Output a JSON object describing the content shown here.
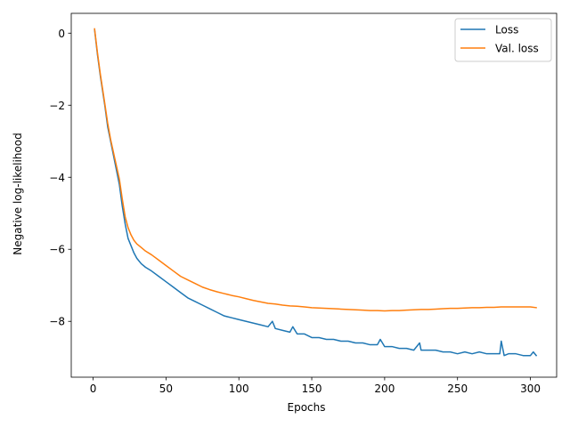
{
  "chart_data": {
    "type": "line",
    "title": "",
    "xlabel": "Epochs",
    "ylabel": "Negative log-likelihood",
    "xlim": [
      -15,
      318
    ],
    "ylim": [
      -9.55,
      0.55
    ],
    "xticks": [
      0,
      50,
      100,
      150,
      200,
      250,
      300
    ],
    "yticks": [
      0,
      -2,
      -4,
      -6,
      -8
    ],
    "ytick_labels": [
      "0",
      "−2",
      "−4",
      "−6",
      "−8"
    ],
    "grid": false,
    "legend_position": "top-right",
    "series": [
      {
        "name": "Loss",
        "color": "#1f77b4",
        "x": [
          1,
          3,
          5,
          8,
          10,
          12,
          15,
          18,
          20,
          22,
          24,
          26,
          28,
          30,
          33,
          36,
          40,
          45,
          50,
          55,
          60,
          65,
          70,
          75,
          80,
          85,
          90,
          95,
          100,
          105,
          110,
          115,
          120,
          123,
          125,
          130,
          135,
          137,
          140,
          145,
          150,
          155,
          160,
          165,
          170,
          175,
          180,
          185,
          190,
          195,
          197,
          200,
          205,
          210,
          215,
          220,
          224,
          225,
          230,
          235,
          240,
          245,
          250,
          255,
          260,
          265,
          270,
          275,
          279,
          280,
          282,
          285,
          290,
          295,
          300,
          302,
          304
        ],
        "y": [
          0.1,
          -0.6,
          -1.2,
          -2.0,
          -2.6,
          -3.0,
          -3.6,
          -4.2,
          -4.8,
          -5.3,
          -5.7,
          -5.9,
          -6.1,
          -6.25,
          -6.4,
          -6.5,
          -6.6,
          -6.75,
          -6.9,
          -7.05,
          -7.2,
          -7.35,
          -7.45,
          -7.55,
          -7.65,
          -7.75,
          -7.85,
          -7.9,
          -7.95,
          -8.0,
          -8.05,
          -8.1,
          -8.15,
          -8.0,
          -8.2,
          -8.25,
          -8.3,
          -8.15,
          -8.35,
          -8.35,
          -8.45,
          -8.45,
          -8.5,
          -8.5,
          -8.55,
          -8.55,
          -8.6,
          -8.6,
          -8.65,
          -8.65,
          -8.5,
          -8.7,
          -8.7,
          -8.75,
          -8.75,
          -8.8,
          -8.6,
          -8.8,
          -8.8,
          -8.8,
          -8.85,
          -8.85,
          -8.9,
          -8.85,
          -8.9,
          -8.85,
          -8.9,
          -8.9,
          -8.9,
          -8.55,
          -8.95,
          -8.9,
          -8.9,
          -8.95,
          -8.95,
          -8.85,
          -8.95
        ]
      },
      {
        "name": "Val. loss",
        "color": "#ff7f0e",
        "x": [
          1,
          3,
          5,
          8,
          10,
          12,
          15,
          18,
          20,
          22,
          24,
          26,
          28,
          30,
          33,
          36,
          40,
          45,
          50,
          55,
          60,
          65,
          70,
          75,
          80,
          85,
          90,
          95,
          100,
          105,
          110,
          115,
          120,
          125,
          130,
          135,
          140,
          145,
          150,
          155,
          160,
          165,
          170,
          175,
          180,
          185,
          190,
          195,
          200,
          205,
          210,
          215,
          220,
          225,
          230,
          235,
          240,
          245,
          250,
          255,
          260,
          265,
          270,
          275,
          280,
          285,
          290,
          295,
          300,
          304
        ],
        "y": [
          0.12,
          -0.55,
          -1.15,
          -1.95,
          -2.5,
          -2.95,
          -3.5,
          -4.05,
          -4.6,
          -5.1,
          -5.4,
          -5.6,
          -5.75,
          -5.85,
          -5.95,
          -6.05,
          -6.15,
          -6.3,
          -6.45,
          -6.6,
          -6.75,
          -6.85,
          -6.95,
          -7.05,
          -7.12,
          -7.18,
          -7.23,
          -7.28,
          -7.32,
          -7.37,
          -7.42,
          -7.46,
          -7.5,
          -7.52,
          -7.55,
          -7.57,
          -7.58,
          -7.6,
          -7.62,
          -7.63,
          -7.64,
          -7.65,
          -7.66,
          -7.67,
          -7.68,
          -7.69,
          -7.7,
          -7.7,
          -7.71,
          -7.7,
          -7.7,
          -7.69,
          -7.68,
          -7.67,
          -7.67,
          -7.66,
          -7.65,
          -7.64,
          -7.64,
          -7.63,
          -7.62,
          -7.62,
          -7.61,
          -7.61,
          -7.6,
          -7.6,
          -7.6,
          -7.6,
          -7.6,
          -7.62
        ]
      }
    ]
  }
}
